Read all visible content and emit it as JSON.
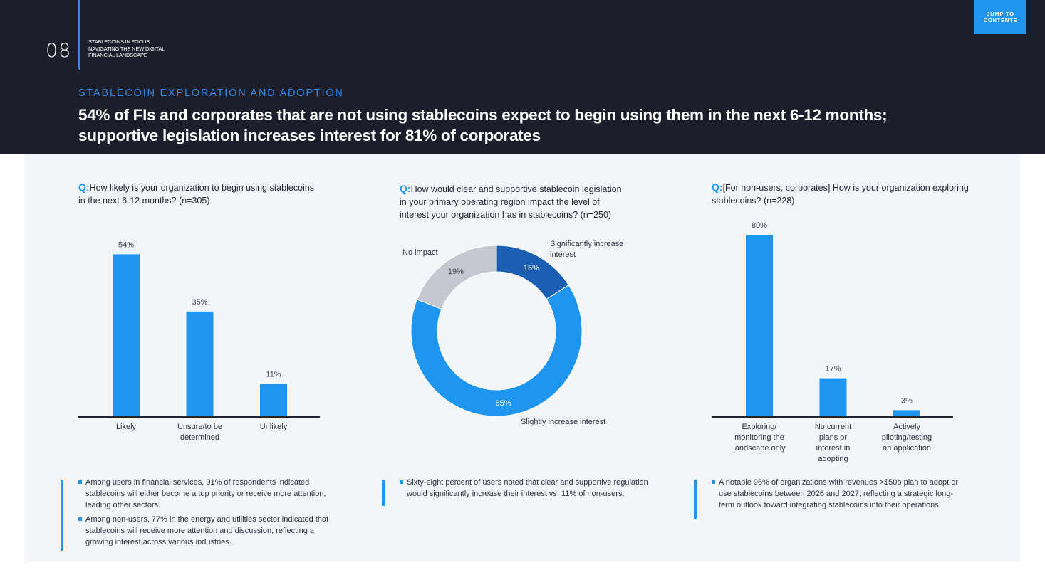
{
  "header": {
    "page_number": "08",
    "publication_title_lines": [
      "STABLECOINS IN FOCUS:",
      "NAVIGATING THE NEW DIGITAL",
      "FINANCIAL LANDSCAPE"
    ],
    "jump_lines": [
      "JUMP TO",
      "CONTENTS"
    ],
    "eyebrow": "STABLECOIN EXPLORATION AND ADOPTION",
    "headline_lines": [
      "54% of FIs and corporates that are not using stablecoins expect to begin using them in the next 6-12 months;",
      "supportive legislation increases interest for 81% of corporates"
    ]
  },
  "colors": {
    "accent": "#1e96f0",
    "dark_blue": "#1a5fb4",
    "grey": "#c5c8d0",
    "header_bg": "#1c1e2b",
    "panel_bg": "#f3f5f9"
  },
  "questions": [
    {
      "marker": "Q:",
      "lines": [
        "How likely is your organization to begin using stablecoins",
        "in the next 6-12 months? (n=305)"
      ]
    },
    {
      "marker": "Q:",
      "lines": [
        "How would clear and supportive stablecoin legislation",
        "in your primary operating region impact the level of",
        "interest your organization has in stablecoins? (n=250)"
      ]
    },
    {
      "marker": "Q:",
      "lines": [
        "[For non-users, corporates] How is your organization exploring",
        "stablecoins? (n=228)"
      ]
    }
  ],
  "chart_data": [
    {
      "type": "bar",
      "categories": [
        "Likely",
        "Unsure/to be determined",
        "Unlikely"
      ],
      "category_lines": [
        [
          "Likely"
        ],
        [
          "Unsure/to be",
          "determined"
        ],
        [
          "Unlikely"
        ]
      ],
      "values": [
        54,
        35,
        11
      ],
      "value_labels": [
        "54%",
        "35%",
        "11%"
      ],
      "ylim": [
        0,
        60
      ]
    },
    {
      "type": "pie",
      "donut": true,
      "labels": [
        "Significantly increase interest",
        "Slightly increase interest",
        "No impact"
      ],
      "label_lines": [
        [
          "Significantly increase",
          "interest"
        ],
        [
          "Slightly increase interest"
        ],
        [
          "No impact"
        ]
      ],
      "values": [
        16,
        65,
        19
      ],
      "value_labels": [
        "16%",
        "65%",
        "19%"
      ],
      "colors": [
        "#1a5fb4",
        "#1e96f0",
        "#c5c8d0"
      ]
    },
    {
      "type": "bar",
      "categories": [
        "Exploring/ monitoring the landscape only",
        "No current plans or interest in adopting",
        "Actively piloting/testing an application"
      ],
      "category_lines": [
        [
          "Exploring/",
          "monitoring the",
          "landscape only"
        ],
        [
          "No current",
          "plans or",
          "interest in",
          "adopting"
        ],
        [
          "Actively",
          "piloting/testing",
          "an application"
        ]
      ],
      "values": [
        80,
        17,
        3
      ],
      "value_labels": [
        "80%",
        "17%",
        "3%"
      ],
      "ylim": [
        0,
        80
      ]
    }
  ],
  "notes": [
    [
      [
        "Among users in financial services, 91% of respondents indicated",
        "stablecoins will either become a top priority or receive more attention,",
        "leading other sectors."
      ],
      [
        "Among non-users, 77% in the energy and utilities sector indicated that",
        "stablecoins will receive more attention and discussion, reflecting a",
        "growing interest across various industries."
      ]
    ],
    [
      [
        "Sixty-eight percent of users noted that clear and supportive regulation",
        "would significantly increase their interest vs. 11% of non-users."
      ]
    ],
    [
      [
        "A notable 96% of organizations with revenues >$50b plan to adopt or",
        "use stablecoins between 2026 and 2027, reflecting a strategic long-",
        "term outlook toward integrating stablecoins into their operations."
      ]
    ]
  ]
}
